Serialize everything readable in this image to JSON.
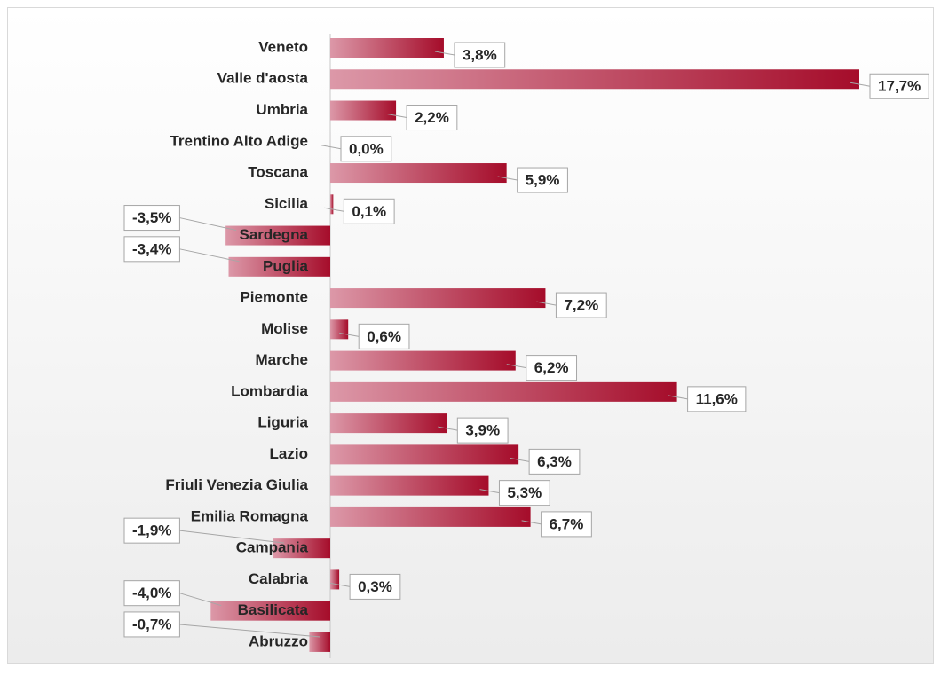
{
  "chart_data": {
    "type": "bar",
    "orientation": "horizontal",
    "categories": [
      "Veneto",
      "Valle d'aosta",
      "Umbria",
      "Trentino Alto Adige",
      "Toscana",
      "Sicilia",
      "Sardegna",
      "Puglia",
      "Piemonte",
      "Molise",
      "Marche",
      "Lombardia",
      "Liguria",
      "Lazio",
      "Friuli Venezia Giulia",
      "Emilia Romagna",
      "Campania",
      "Calabria",
      "Basilicata",
      "Abruzzo"
    ],
    "values": [
      3.8,
      17.7,
      2.2,
      0.0,
      5.9,
      0.1,
      -3.5,
      -3.4,
      7.2,
      0.6,
      6.2,
      11.6,
      3.9,
      6.3,
      5.3,
      6.7,
      -1.9,
      0.3,
      -4.0,
      -0.7
    ],
    "value_labels": [
      "3,8%",
      "17,7%",
      "2,2%",
      "0,0%",
      "5,9%",
      "0,1%",
      "-3,5%",
      "-3,4%",
      "7,2%",
      "0,6%",
      "6,2%",
      "11,6%",
      "3,9%",
      "6,3%",
      "5,3%",
      "6,7%",
      "-1,9%",
      "0,3%",
      "-4,0%",
      "-0,7%"
    ],
    "color": [
      "#dc98a8",
      "#a50c2a"
    ]
  }
}
